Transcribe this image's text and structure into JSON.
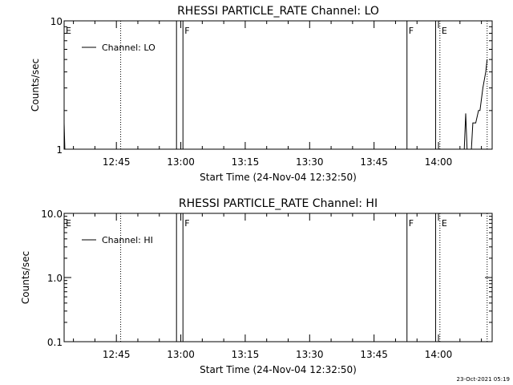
{
  "footer": {
    "timestamp": "23-Oct-2021 05:19"
  },
  "chart_data": [
    {
      "type": "line",
      "title": "RHESSI PARTICLE_RATE Channel: LO",
      "xlabel": "Start Time (24-Nov-04 12:32:50)",
      "ylabel": "Counts/sec",
      "y_scale": "log",
      "ylim": [
        1,
        10
      ],
      "y_ticks": [
        {
          "value": 1,
          "label": "1"
        },
        {
          "value": 10,
          "label": "10"
        }
      ],
      "xlim": [
        "12:32:50",
        "14:12:30"
      ],
      "x_ticks": [
        "12:45",
        "13:00",
        "13:15",
        "13:30",
        "13:45",
        "14:00"
      ],
      "legend": {
        "position": "top-left",
        "entries": [
          "Channel: LO"
        ]
      },
      "markers": [
        {
          "time": "12:32:50",
          "style": "none",
          "label": "E"
        },
        {
          "time": "12:46:00",
          "style": "dotted",
          "label": ""
        },
        {
          "time": "12:59:00",
          "style": "solid",
          "label": ""
        },
        {
          "time": "13:00:30",
          "style": "solid",
          "label": "F"
        },
        {
          "time": "13:52:40",
          "style": "solid",
          "label": "F"
        },
        {
          "time": "13:59:20",
          "style": "solid",
          "label": ""
        },
        {
          "time": "14:00:20",
          "style": "dotted",
          "label": "E"
        },
        {
          "time": "14:11:20",
          "style": "dotted",
          "label": ""
        }
      ],
      "series": [
        {
          "segments": [
            [
              [
                "12:32:50",
                1.6
              ],
              [
                "12:33:00",
                1.0
              ]
            ],
            [
              [
                "14:06:00",
                1.0
              ],
              [
                "14:06:20",
                1.9
              ],
              [
                "14:06:40",
                1.0
              ],
              [
                "14:07:40",
                1.0
              ],
              [
                "14:08:00",
                1.6
              ],
              [
                "14:08:40",
                1.6
              ],
              [
                "14:09:20",
                2.0
              ],
              [
                "14:09:40",
                2.0
              ],
              [
                "14:10:20",
                3.0
              ],
              [
                "14:11:00",
                4.0
              ],
              [
                "14:11:20",
                5.0
              ]
            ]
          ]
        }
      ]
    },
    {
      "type": "line",
      "title": "RHESSI PARTICLE_RATE Channel: HI",
      "xlabel": "Start Time (24-Nov-04 12:32:50)",
      "ylabel": "Counts/sec",
      "y_scale": "log",
      "ylim": [
        0.1,
        10
      ],
      "y_ticks": [
        {
          "value": 0.1,
          "label": "0.1"
        },
        {
          "value": 1,
          "label": "1.0"
        },
        {
          "value": 10,
          "label": "10.0"
        }
      ],
      "xlim": [
        "12:32:50",
        "14:12:30"
      ],
      "x_ticks": [
        "12:45",
        "13:00",
        "13:15",
        "13:30",
        "13:45",
        "14:00"
      ],
      "legend": {
        "position": "top-left",
        "entries": [
          "Channel: HI"
        ]
      },
      "markers": [
        {
          "time": "12:32:50",
          "style": "none",
          "label": "E"
        },
        {
          "time": "12:46:00",
          "style": "dotted",
          "label": ""
        },
        {
          "time": "12:59:00",
          "style": "solid",
          "label": ""
        },
        {
          "time": "13:00:30",
          "style": "solid",
          "label": "F"
        },
        {
          "time": "13:52:40",
          "style": "solid",
          "label": "F"
        },
        {
          "time": "13:59:20",
          "style": "solid",
          "label": ""
        },
        {
          "time": "14:00:20",
          "style": "dotted",
          "label": "E"
        },
        {
          "time": "14:11:20",
          "style": "dotted",
          "label": ""
        }
      ],
      "series": [
        {
          "segments": [
            [
              [
                "14:11:00",
                1.0
              ],
              [
                "14:11:20",
                1.0
              ]
            ]
          ]
        }
      ]
    }
  ]
}
